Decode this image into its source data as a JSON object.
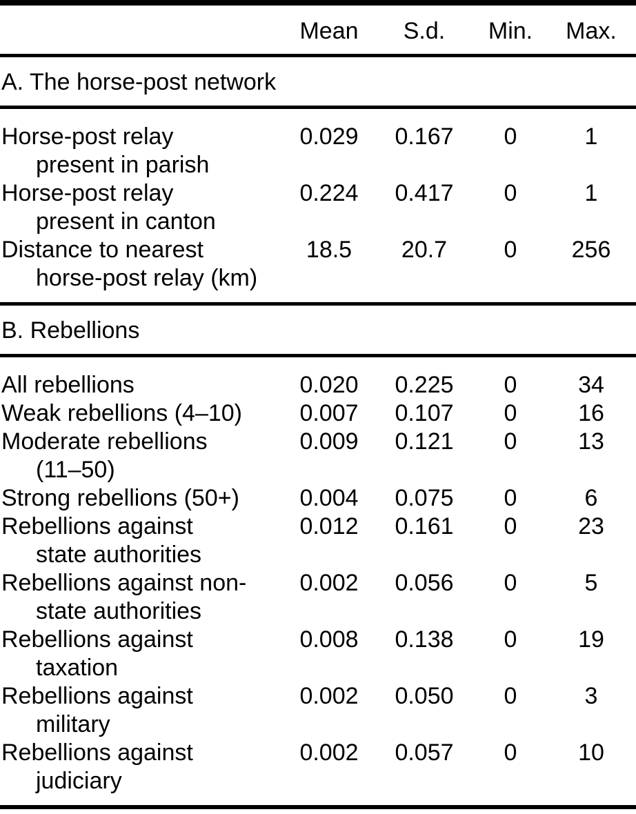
{
  "table": {
    "columns": [
      "Mean",
      "S.d.",
      "Min.",
      "Max."
    ],
    "sections": [
      {
        "title": "A. The horse-post network",
        "rows": [
          {
            "label_line1": "Horse-post relay",
            "label_line2": "present in parish",
            "mean": "0.029",
            "sd": "0.167",
            "min": "0",
            "max": "1"
          },
          {
            "label_line1": "Horse-post relay",
            "label_line2": "present in canton",
            "mean": "0.224",
            "sd": "0.417",
            "min": "0",
            "max": "1"
          },
          {
            "label_line1": "Distance to nearest",
            "label_line2": "horse-post relay (km)",
            "mean": "18.5",
            "sd": "20.7",
            "min": "0",
            "max": "256"
          }
        ]
      },
      {
        "title": "B. Rebellions",
        "rows": [
          {
            "label_line1": "All rebellions",
            "label_line2": "",
            "mean": "0.020",
            "sd": "0.225",
            "min": "0",
            "max": "34"
          },
          {
            "label_line1": "Weak rebellions (4–10)",
            "label_line2": "",
            "mean": "0.007",
            "sd": "0.107",
            "min": "0",
            "max": "16"
          },
          {
            "label_line1": "Moderate rebellions",
            "label_line2": "(11–50)",
            "mean": "0.009",
            "sd": "0.121",
            "min": "0",
            "max": "13"
          },
          {
            "label_line1": "Strong rebellions (50+)",
            "label_line2": "",
            "mean": "0.004",
            "sd": "0.075",
            "min": "0",
            "max": "6"
          },
          {
            "label_line1": "Rebellions against",
            "label_line2": "state authorities",
            "mean": "0.012",
            "sd": "0.161",
            "min": "0",
            "max": "23"
          },
          {
            "label_line1": "Rebellions against non-",
            "label_line2": "state authorities",
            "mean": "0.002",
            "sd": "0.056",
            "min": "0",
            "max": "5"
          },
          {
            "label_line1": "Rebellions against",
            "label_line2": "taxation",
            "mean": "0.008",
            "sd": "0.138",
            "min": "0",
            "max": "19"
          },
          {
            "label_line1": "Rebellions against",
            "label_line2": "military",
            "mean": "0.002",
            "sd": "0.050",
            "min": "0",
            "max": "3"
          },
          {
            "label_line1": "Rebellions against",
            "label_line2": "judiciary",
            "mean": "0.002",
            "sd": "0.057",
            "min": "0",
            "max": "10"
          }
        ]
      }
    ]
  }
}
